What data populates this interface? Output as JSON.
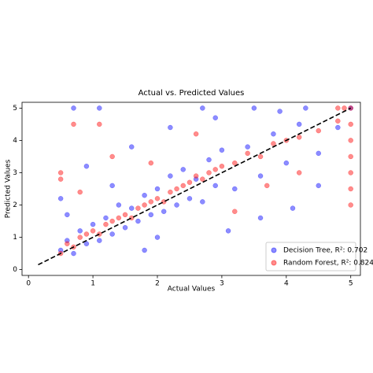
{
  "chart_data": {
    "type": "scatter",
    "title": "Actual vs. Predicted Values",
    "xlabel": "Actual Values",
    "ylabel": "Predicted Values",
    "xlim": [
      -0.1,
      5.15
    ],
    "ylim": [
      -0.18,
      5.18
    ],
    "xticks": [
      0,
      1,
      2,
      3,
      4,
      5
    ],
    "yticks": [
      0,
      1,
      2,
      3,
      4,
      5
    ],
    "legend": "lower right",
    "reference_line": {
      "x": [
        0.15,
        5
      ],
      "y": [
        0.15,
        5
      ],
      "color": "#000000"
    },
    "series": [
      {
        "name": "Decision Tree, R²: 0.702",
        "color": "#0000ff",
        "x": [
          0.5,
          0.6,
          0.7,
          0.8,
          0.9,
          1.0,
          1.1,
          1.2,
          1.3,
          1.4,
          1.5,
          1.6,
          1.7,
          1.8,
          1.9,
          2.0,
          2.1,
          2.2,
          2.3,
          2.4,
          2.5,
          2.6,
          2.7,
          2.8,
          2.9,
          3.0,
          3.2,
          3.4,
          3.6,
          3.8,
          4.0,
          4.2,
          4.5,
          4.8,
          5.0,
          0.7,
          1.1,
          2.7,
          3.5,
          4.3,
          0.5,
          0.9,
          1.6,
          2.2,
          3.1,
          3.6,
          4.1,
          4.5,
          1.3,
          0.6,
          2.0,
          2.9,
          3.9,
          1.8
        ],
        "values": [
          0.6,
          0.9,
          0.5,
          1.2,
          0.8,
          1.4,
          0.9,
          1.6,
          1.1,
          2.0,
          1.3,
          1.9,
          1.5,
          2.3,
          1.7,
          2.5,
          1.8,
          2.9,
          2.0,
          3.1,
          2.2,
          2.8,
          2.1,
          3.4,
          2.6,
          3.7,
          2.5,
          3.8,
          2.9,
          4.2,
          3.3,
          4.5,
          3.6,
          4.4,
          5.0,
          5.0,
          5.0,
          5.0,
          5.0,
          5.0,
          2.2,
          3.2,
          3.8,
          4.4,
          1.2,
          1.6,
          1.9,
          2.6,
          2.6,
          1.7,
          1.0,
          4.7,
          4.9,
          0.6
        ]
      },
      {
        "name": "Random Forest, R²: 0.824",
        "color": "#ff0000",
        "x": [
          0.5,
          0.6,
          0.7,
          0.8,
          0.9,
          1.0,
          1.1,
          1.2,
          1.3,
          1.4,
          1.5,
          1.6,
          1.7,
          1.8,
          1.9,
          2.0,
          2.1,
          2.2,
          2.3,
          2.4,
          2.5,
          2.6,
          2.7,
          2.8,
          2.9,
          3.0,
          3.2,
          3.4,
          3.6,
          3.8,
          4.0,
          4.2,
          4.5,
          4.8,
          5.0,
          5.0,
          5.0,
          5.0,
          5.0,
          5.0,
          5.0,
          4.8,
          4.9,
          1.1,
          0.7,
          0.5,
          0.5,
          1.3,
          3.2,
          2.6,
          3.7,
          0.8,
          1.9,
          4.2
        ],
        "values": [
          0.5,
          0.8,
          0.7,
          1.0,
          1.1,
          1.2,
          1.1,
          1.4,
          1.5,
          1.6,
          1.7,
          1.6,
          1.9,
          2.0,
          2.1,
          2.2,
          2.1,
          2.4,
          2.5,
          2.6,
          2.7,
          2.9,
          2.8,
          3.0,
          3.1,
          3.2,
          3.3,
          3.6,
          3.5,
          3.9,
          4.0,
          4.1,
          4.3,
          4.6,
          5.0,
          4.5,
          4.0,
          3.5,
          3.0,
          2.5,
          2.0,
          5.0,
          5.0,
          4.5,
          4.5,
          2.8,
          3.0,
          3.5,
          1.8,
          4.2,
          2.6,
          2.4,
          3.3,
          3.0
        ]
      }
    ]
  }
}
